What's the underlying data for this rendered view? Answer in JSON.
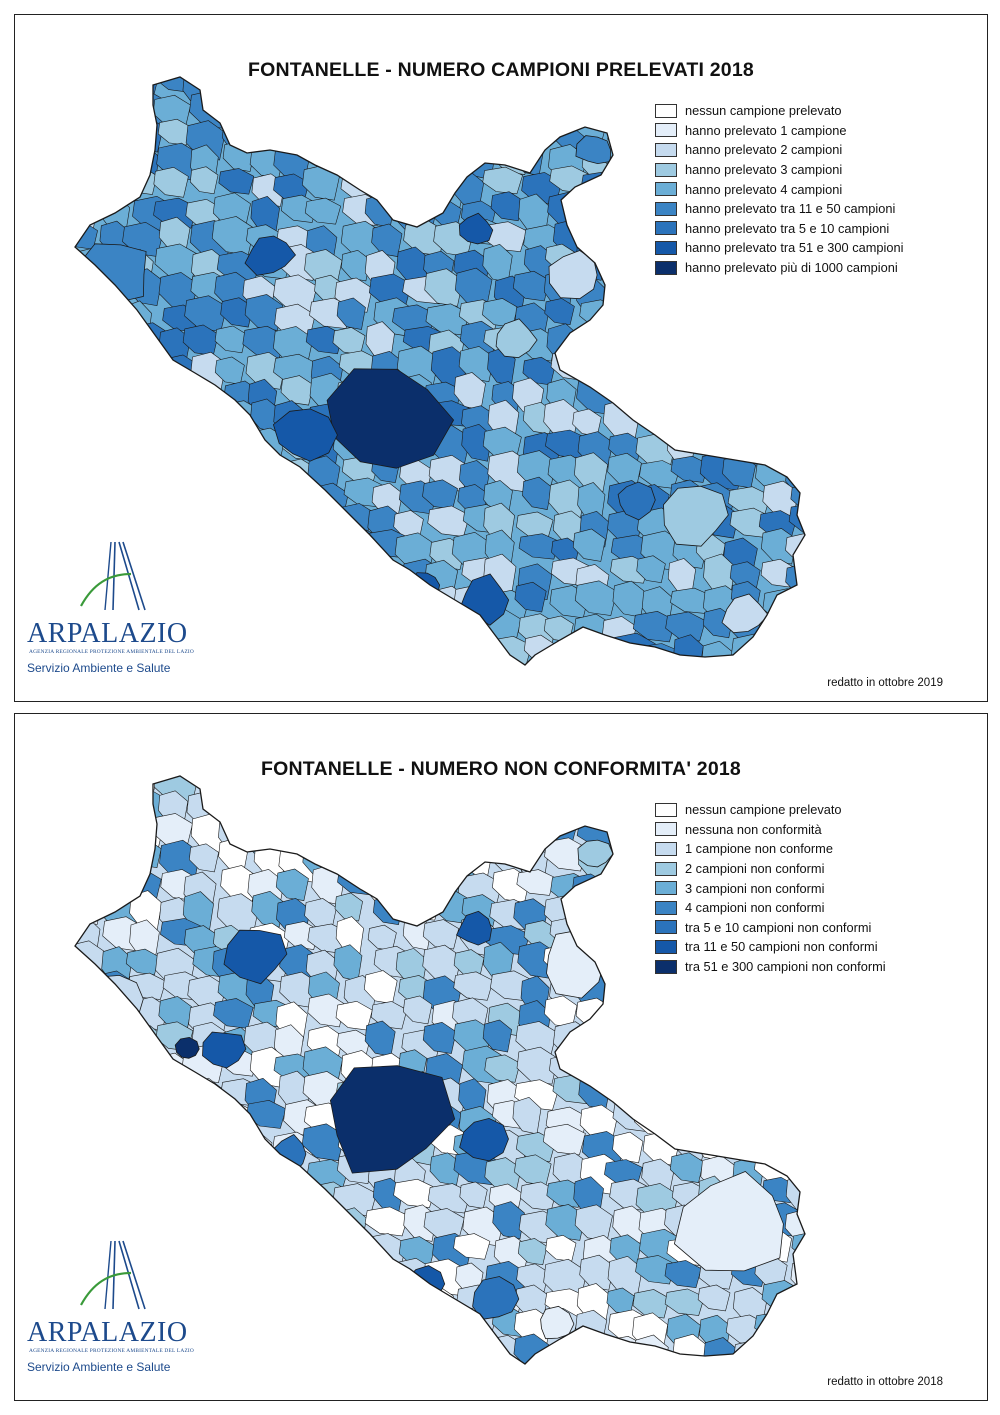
{
  "colors": {
    "c0": "#ffffff",
    "c1": "#e4eef9",
    "c2": "#c6dbef",
    "c3": "#9ecae1",
    "c4": "#6baed6",
    "c5": "#3b84c4",
    "c6": "#2b73bb",
    "c7": "#1558a8",
    "c8": "#0b2f6b",
    "border": "#1a1a1a",
    "brand": "#1d4a8c",
    "brand_green": "#3a9a3a"
  },
  "maps": [
    {
      "title": "FONTANELLE - NUMERO CAMPIONI PRELEVATI 2018",
      "legend": [
        {
          "label": "nessun campione prelevato",
          "color": "#ffffff"
        },
        {
          "label": "hanno prelevato 1 campione",
          "color": "#e4eef9"
        },
        {
          "label": "hanno prelevato 2 campioni",
          "color": "#c6dbef"
        },
        {
          "label": "hanno prelevato 3 campioni",
          "color": "#9ecae1"
        },
        {
          "label": "hanno prelevato 4 campioni",
          "color": "#6baed6"
        },
        {
          "label": "hanno prelevato tra 11 e 50 campioni",
          "color": "#3b84c4"
        },
        {
          "label": "hanno prelevato tra 5 e 10 campioni",
          "color": "#2b73bb"
        },
        {
          "label": "hanno prelevato tra 51 e 300 campioni",
          "color": "#1558a8"
        },
        {
          "label": "hanno prelevato più di 1000 campioni",
          "color": "#0b2f6b"
        }
      ],
      "logo": {
        "name": "ARPALAZIO",
        "subtitle": "AGENZIA REGIONALE PROTEZIONE AMBIENTALE DEL LAZIO",
        "service": "Servizio Ambiente e Salute"
      },
      "note": "redatto in ottobre 2019"
    },
    {
      "title": "FONTANELLE - NUMERO NON CONFORMITA' 2018",
      "legend": [
        {
          "label": "nessun campione prelevato",
          "color": "#ffffff"
        },
        {
          "label": "nessuna non conformità",
          "color": "#e4eef9"
        },
        {
          "label": "1 campione non conforme",
          "color": "#c6dbef"
        },
        {
          "label": "2 campioni non conformi",
          "color": "#9ecae1"
        },
        {
          "label": "3 campioni non conformi",
          "color": "#6baed6"
        },
        {
          "label": "4 campioni non conformi",
          "color": "#3b84c4"
        },
        {
          "label": "tra 5 e 10 campioni non conformi",
          "color": "#2b73bb"
        },
        {
          "label": "tra 11 e 50 campioni non conformi",
          "color": "#1558a8"
        },
        {
          "label": "tra 51 e 300 campioni non conformi",
          "color": "#0b2f6b"
        }
      ],
      "logo": {
        "name": "ARPALAZIO",
        "subtitle": "AGENZIA REGIONALE PROTEZIONE AMBIENTALE DEL LAZIO",
        "service": "Servizio Ambiente e Salute"
      },
      "note": "redatto in ottobre 2018"
    }
  ]
}
